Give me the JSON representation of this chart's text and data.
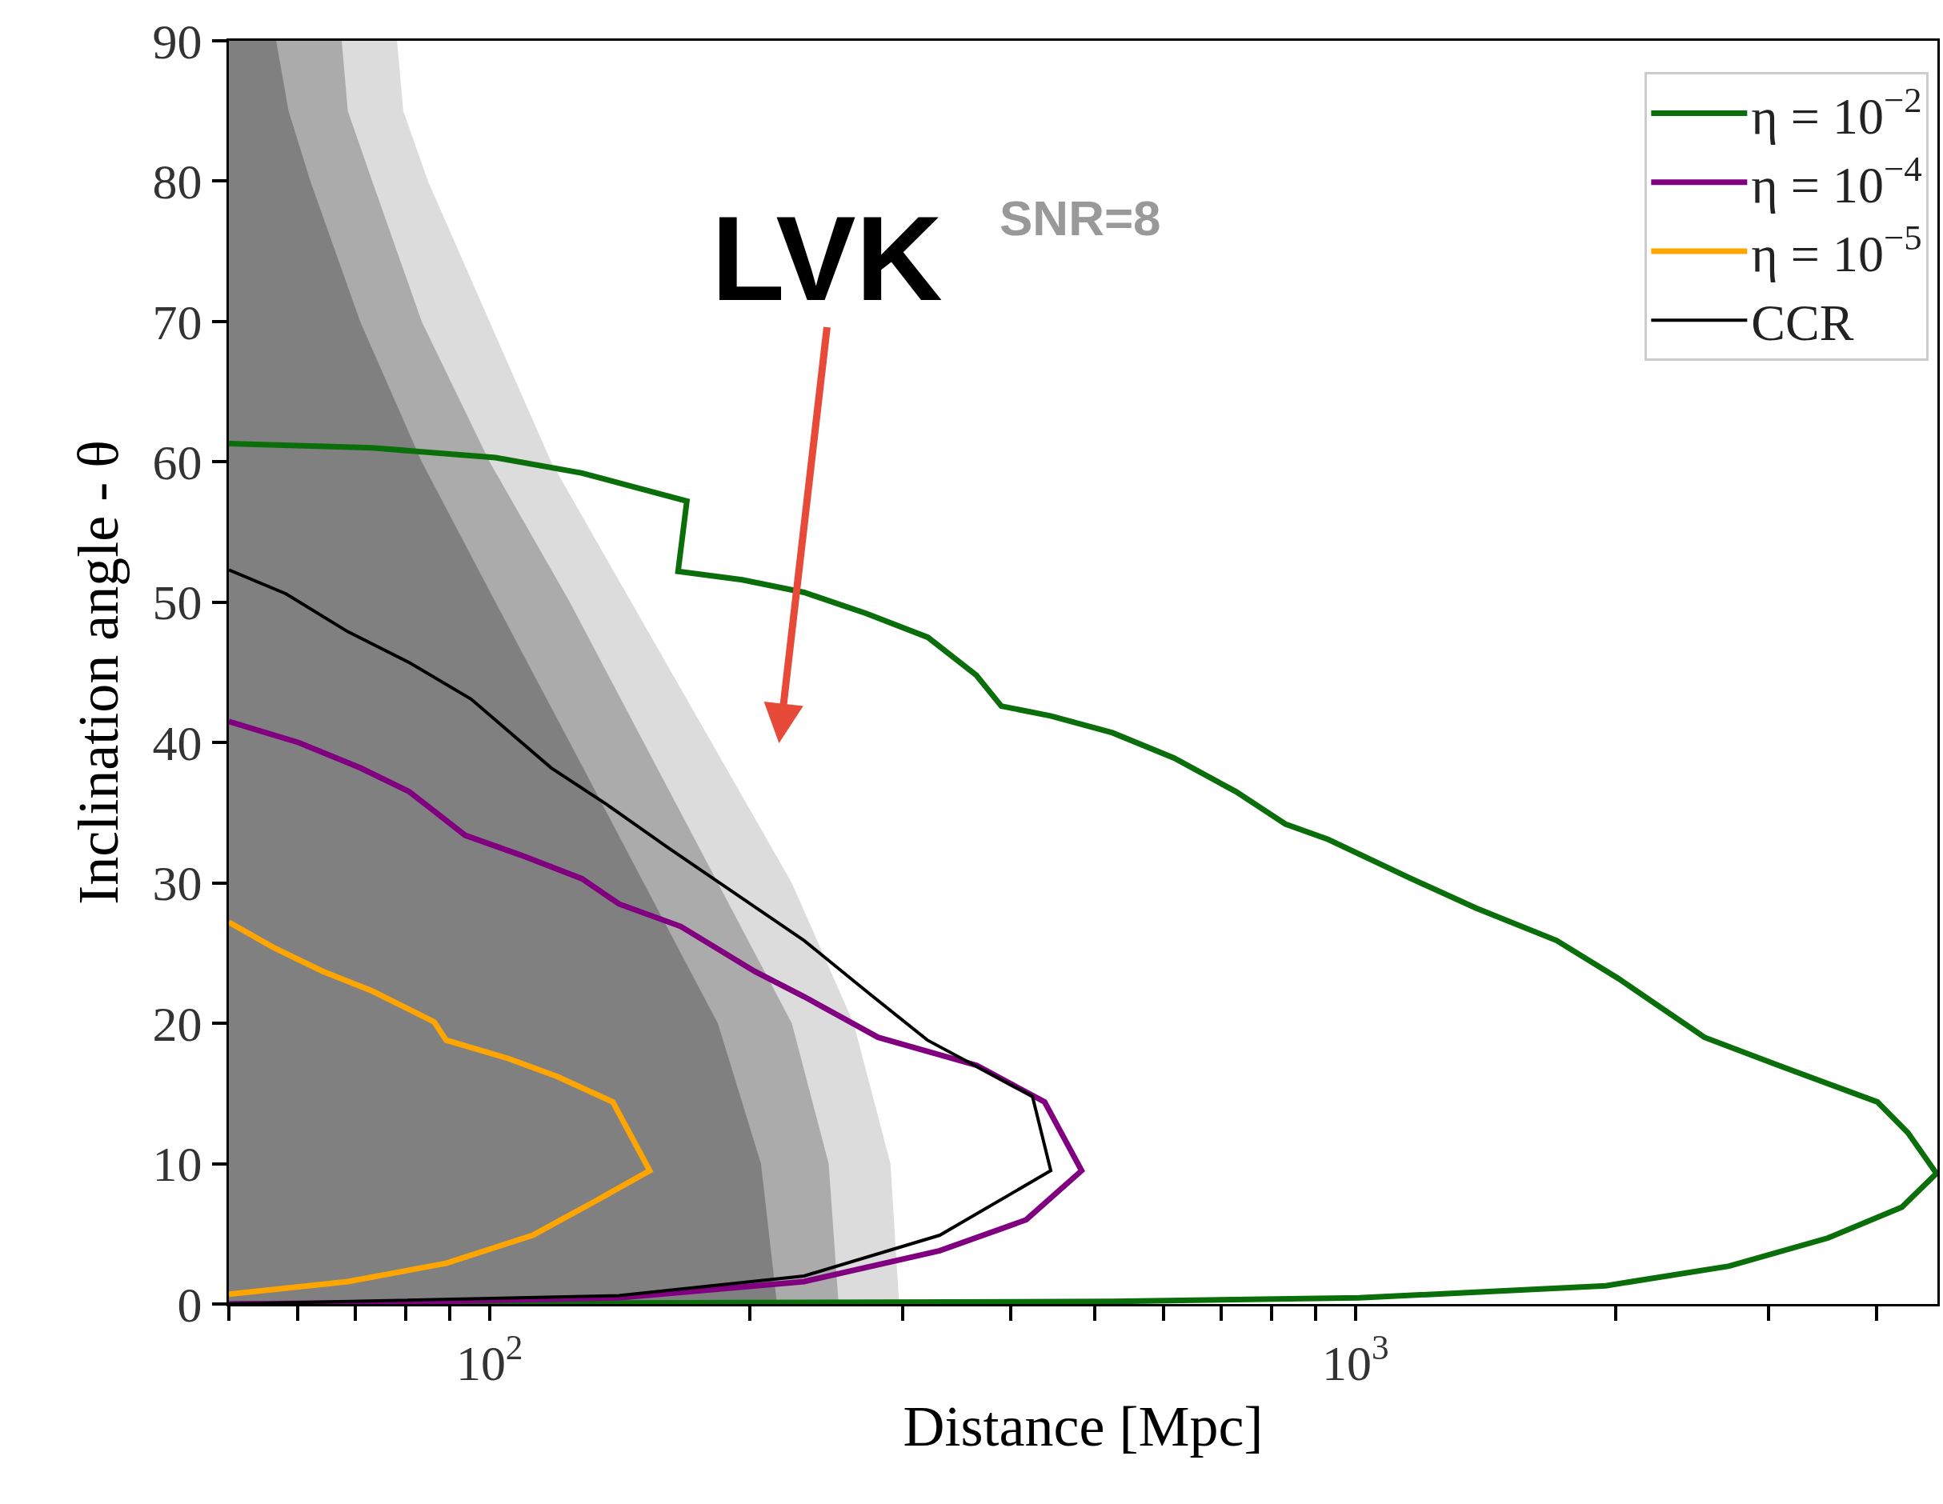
{
  "chart_data": {
    "type": "line",
    "xlabel": "Distance [Mpc]",
    "ylabel": "Inclination angle - θ",
    "log": "x",
    "xlim": [
      50,
      4700
    ],
    "ylim": [
      0,
      90
    ],
    "xticks": [
      {
        "value": 100,
        "label": "10$^{2}$"
      },
      {
        "value": 1000,
        "label": "10$^{3}$"
      }
    ],
    "yticks": [
      0,
      10,
      20,
      30,
      40,
      50,
      60,
      70,
      80,
      90
    ],
    "legend": "top right",
    "marker": "none",
    "line_style": "solid",
    "series": [
      {
        "type": "area",
        "color": "#dcdcdc",
        "x": [
          50,
          78.2,
          79.5,
          84.9,
          100,
          117.8,
          145.8,
          180.5,
          223.4,
          263.3,
          290.4,
          297.2,
          50
        ],
        "values": [
          90,
          90,
          85,
          80,
          70,
          60,
          50,
          40,
          30,
          20,
          10,
          0,
          0
        ]
      },
      {
        "type": "area",
        "color": "#ababab",
        "x": [
          50,
          67.5,
          68.6,
          73.2,
          83.5,
          100,
          123.8,
          150.7,
          183.5,
          223.4,
          246.4,
          253,
          50
        ],
        "values": [
          90,
          90,
          85,
          80,
          70,
          60,
          50,
          40,
          30,
          20,
          10,
          0,
          0
        ]
      },
      {
        "type": "area",
        "color": "#808080",
        "x": [
          50,
          56.7,
          58.6,
          62.1,
          70.9,
          83.5,
          101.6,
          123.8,
          150.7,
          183.5,
          205.8,
          214.8,
          50
        ],
        "values": [
          90,
          90,
          85,
          80,
          70,
          60,
          50,
          40,
          30,
          20,
          10,
          0,
          0
        ]
      },
      {
        "name": "η = 10$^{−2}$",
        "color": "#0a6e0a",
        "x": [
          50,
          73.2,
          101.6,
          127.9,
          169.0,
          165.1,
          195.8,
          230.8,
          272.2,
          320.8,
          364.9,
          390.0,
          444.5,
          524.0,
          617.2,
          728.0,
          830.0,
          930.0,
          1151,
          1379,
          1707,
          2011,
          2530,
          3081,
          4006,
          4346,
          4688,
          4276,
          3512,
          2701,
          1946,
          1010,
          524,
          195.8,
          50
        ],
        "values": [
          61.3,
          61.0,
          60.3,
          59.2,
          57.2,
          52.2,
          51.6,
          50.7,
          49.2,
          47.5,
          44.8,
          42.6,
          41.9,
          40.7,
          38.9,
          36.5,
          34.2,
          33.1,
          30.4,
          28.2,
          25.9,
          23.2,
          19.0,
          17.0,
          14.4,
          12.2,
          9.3,
          6.9,
          4.7,
          2.7,
          1.3,
          0.44,
          0.18,
          0.1,
          0
        ]
      },
      {
        "name": "η = 10$^{−4}$",
        "color": "#800080",
        "x": [
          50,
          60.2,
          70.9,
          80.8,
          93.7,
          108.5,
          127.9,
          141.1,
          166.3,
          202.4,
          230.8,
          281.0,
          365.3,
          437.5,
          482.8,
          416.6,
          331.1,
          230.8,
          141.1,
          73.2,
          50
        ],
        "values": [
          41.5,
          40.0,
          38.2,
          36.5,
          33.4,
          32.0,
          30.3,
          28.5,
          26.9,
          23.7,
          21.9,
          19.0,
          17.0,
          14.4,
          9.5,
          6.0,
          3.8,
          1.6,
          0.44,
          0.1,
          0
        ]
      },
      {
        "name": "η = 10$^{−5}$",
        "color": "#ffa500",
        "x": [
          50,
          56.3,
          64.2,
          73.2,
          86.3,
          89.1,
          105.0,
          119.8,
          138.8,
          153.1,
          132.2,
          112.2,
          89.1,
          68.6,
          50
        ],
        "values": [
          27.2,
          25.4,
          23.7,
          22.3,
          20.1,
          18.8,
          17.5,
          16.2,
          14.4,
          9.5,
          7.3,
          4.9,
          2.9,
          1.6,
          0.7
        ]
      },
      {
        "name": "CCR",
        "color": "#000000",
        "x": [
          50,
          58.2,
          68.6,
          80.8,
          95.2,
          117.8,
          136.5,
          160.9,
          195.8,
          230.8,
          272.2,
          320.4,
          423.6,
          444.8,
          331.1,
          230.8,
          141.1,
          50
        ],
        "values": [
          52.3,
          50.6,
          47.9,
          45.7,
          43.1,
          38.2,
          35.6,
          32.5,
          28.9,
          25.9,
          22.3,
          18.8,
          14.8,
          9.5,
          4.9,
          2.0,
          0.6,
          0
        ]
      }
    ],
    "annotations": [
      "LVK",
      "SNR=8"
    ]
  }
}
